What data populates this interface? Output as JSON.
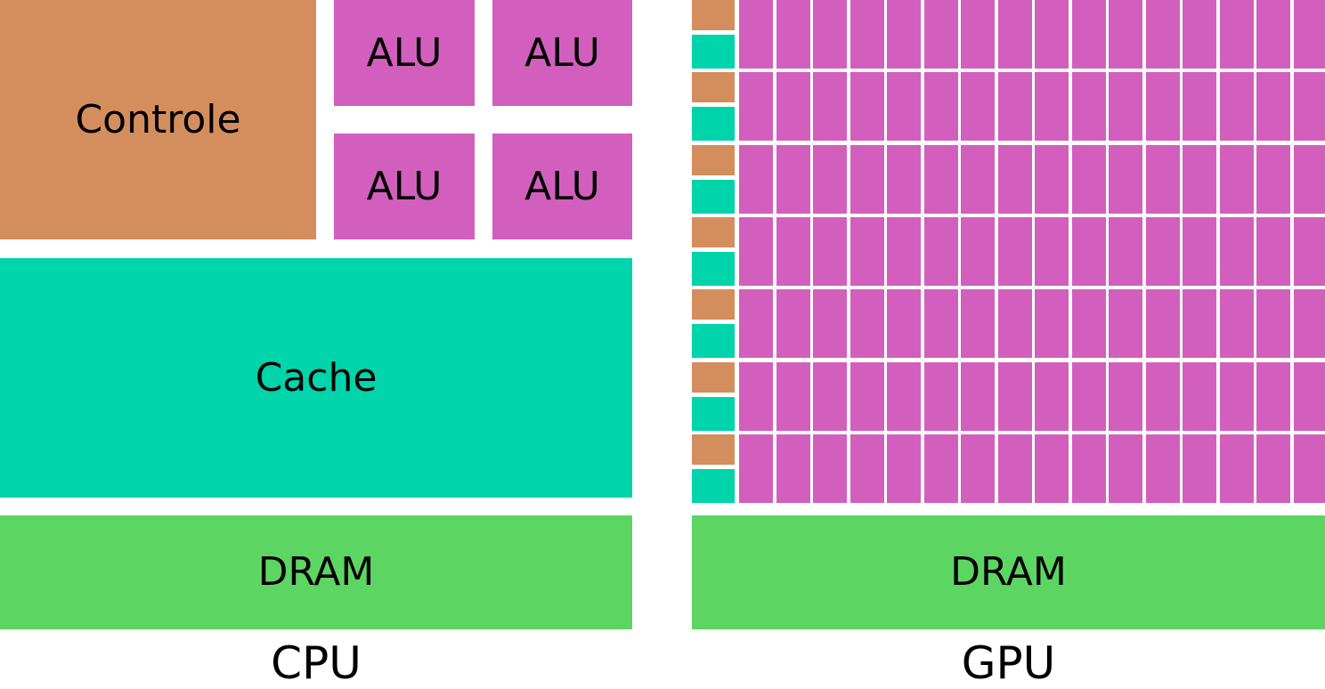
{
  "cpu": {
    "control_label": "Controle",
    "alu_labels": [
      "ALU",
      "ALU",
      "ALU",
      "ALU"
    ],
    "cache_label": "Cache",
    "dram_label": "DRAM",
    "caption": "CPU"
  },
  "gpu": {
    "rows": 7,
    "alu_columns": 16,
    "dram_label": "DRAM",
    "caption": "GPU"
  },
  "colors": {
    "control": "#d48e5e",
    "alu": "#d25fbd",
    "cache": "#00d4aa",
    "dram": "#5dd563"
  }
}
